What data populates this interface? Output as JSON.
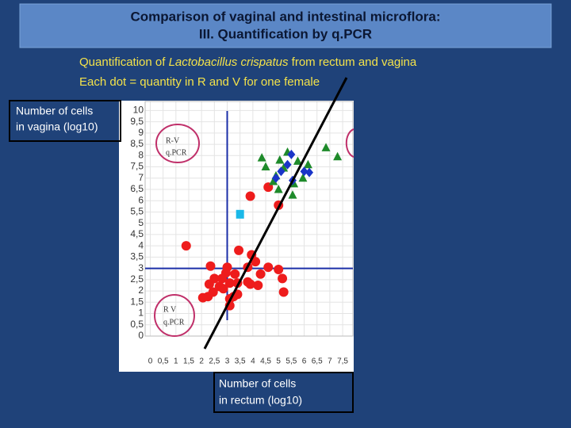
{
  "slide": {
    "title": [
      "Comparison of vaginal and intestinal microflora:",
      "III. Quantification by q.PCR"
    ],
    "subtitle": [
      [
        "Quantification of ",
        "Lactobacillus crispatus",
        " from rectum and vagina"
      ],
      "Each dot = quantity in R and V for one female"
    ]
  },
  "chart_data": {
    "type": "scatter",
    "xlabel": [
      "Number of cells",
      "in rectum (log10)"
    ],
    "ylabel": [
      "Number of cells",
      "in vagina (log10)"
    ],
    "annotations": [
      "R-V",
      "q.PCR",
      "R V",
      "q.PCR"
    ],
    "xlim": [
      -0.2,
      7.9
    ],
    "ylim": [
      0,
      10.4
    ],
    "grid": true,
    "reference_lines": {
      "x": 3,
      "y": 3,
      "color": "#1b2fa8"
    },
    "xticks": [
      0,
      {
        "value": 0.5,
        "label": "0,5"
      },
      1,
      {
        "value": 1.5,
        "label": "1,5"
      },
      2,
      {
        "value": 2.5,
        "label": "2,5"
      },
      3,
      {
        "value": 3.5,
        "label": "3,5"
      },
      4,
      {
        "value": 4.5,
        "label": "4,5"
      },
      5,
      {
        "value": 5.5,
        "label": "5,5"
      },
      6,
      {
        "value": 6.5,
        "label": "6,5"
      },
      7,
      {
        "value": 7.5,
        "label": "7,5"
      }
    ],
    "yticks": [
      0,
      {
        "value": 0.5,
        "label": "0,5"
      },
      1,
      {
        "value": 1.5,
        "label": "1,5"
      },
      2,
      {
        "value": 2.5,
        "label": "2,5"
      },
      3,
      {
        "value": 3.5,
        "label": "3,5"
      },
      4,
      {
        "value": 4.5,
        "label": "4,5"
      },
      5,
      {
        "value": 5.5,
        "label": "5,5"
      },
      6,
      {
        "value": 6.5,
        "label": "6,5"
      },
      7,
      {
        "value": 7.5,
        "label": "7,5"
      },
      8,
      {
        "value": 8.5,
        "label": "8,5"
      },
      9,
      {
        "value": 9.5,
        "label": "9,5"
      },
      10
    ],
    "series": [
      {
        "color": "#ee1c1c",
        "marker": "circle",
        "x": [
          3.9,
          4.6,
          5.0,
          1.4,
          3.45,
          3.95,
          4.1,
          3.8,
          4.6,
          5.0,
          2.35,
          3.0,
          2.95,
          3.3,
          2.3,
          2.5,
          2.8,
          2.7,
          3.1,
          3.4,
          3.8,
          3.9,
          4.2,
          5.15,
          4.3,
          2.45,
          2.05,
          2.25,
          3.1,
          3.25,
          3.4,
          5.2,
          2.85,
          3.1
        ],
        "y": [
          6.2,
          6.6,
          5.8,
          4.0,
          3.8,
          3.6,
          3.3,
          3.05,
          3.05,
          2.95,
          3.1,
          3.05,
          2.8,
          2.75,
          2.3,
          2.55,
          2.55,
          2.2,
          2.35,
          2.35,
          2.4,
          2.3,
          2.25,
          2.55,
          2.75,
          1.95,
          1.7,
          1.75,
          1.65,
          1.75,
          1.85,
          1.95,
          2.1,
          1.35
        ]
      },
      {
        "color": "#1e8a2a",
        "marker": "triangle",
        "x": [
          4.35,
          4.5,
          5.05,
          5.2,
          5.35,
          5.75,
          6.15,
          6.85,
          7.3,
          4.9,
          4.8,
          5.55,
          5.6,
          5.95,
          5.0
        ],
        "y": [
          7.9,
          7.5,
          7.8,
          7.45,
          8.15,
          7.75,
          7.6,
          8.35,
          7.95,
          7.1,
          6.85,
          6.25,
          6.75,
          7.0,
          6.5
        ]
      },
      {
        "color": "#1a35c8",
        "marker": "diamond",
        "x": [
          5.5,
          5.1,
          5.35,
          6.0,
          6.2,
          5.55,
          4.9
        ],
        "y": [
          8.05,
          7.3,
          7.6,
          7.3,
          7.25,
          6.9,
          7.0
        ]
      },
      {
        "color": "#1ab8e8",
        "marker": "square",
        "x": [
          3.5
        ],
        "y": [
          5.4
        ]
      }
    ]
  }
}
